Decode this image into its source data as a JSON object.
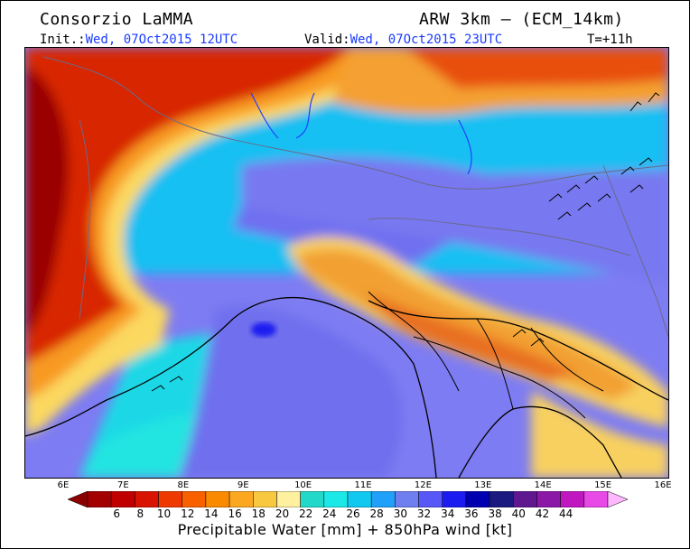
{
  "header": {
    "title": "Consorzio LaMMA",
    "model": "ARW 3km — (ECM_14km)",
    "init_label": "Init.:",
    "init_value": "Wed, 07Oct2015 12UTC",
    "valid_label": "Valid:",
    "valid_value": "Wed, 07Oct2015 23UTC",
    "forecast_step": "T=+11h"
  },
  "map": {
    "longitude_labels": [
      "6E",
      "7E",
      "8E",
      "9E",
      "10E",
      "11E",
      "12E",
      "13E",
      "14E",
      "15E",
      "16E"
    ]
  },
  "colorbar": {
    "labels": [
      "6",
      "8",
      "10",
      "12",
      "14",
      "16",
      "18",
      "20",
      "22",
      "24",
      "26",
      "28",
      "30",
      "32",
      "34",
      "36",
      "38",
      "40",
      "42",
      "44"
    ],
    "colors": [
      "#8b0000",
      "#a30000",
      "#c00000",
      "#d81400",
      "#ee3a00",
      "#f86000",
      "#fa8a00",
      "#fba820",
      "#f8c840",
      "#fff0a0",
      "#22d8c8",
      "#1de8e8",
      "#10c8f0",
      "#20a0f8",
      "#6f7ff0",
      "#5858f8",
      "#1c1cf0",
      "#0000b0",
      "#1a1a80",
      "#601890",
      "#8c18a8",
      "#c018c0",
      "#e84ae8",
      "#ffb8ff"
    ],
    "title": "Precipitable Water [mm] + 850hPa wind [kt]"
  }
}
